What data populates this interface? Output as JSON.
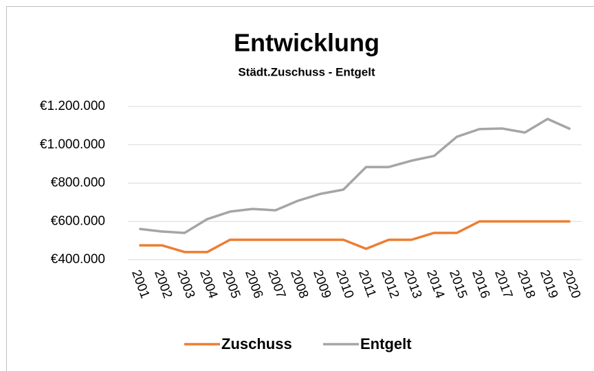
{
  "chart_data": {
    "type": "line",
    "title": "Entwicklung",
    "subtitle": "Städt.Zuschuss - Entgelt",
    "categories": [
      "2001",
      "2002",
      "2003",
      "2004",
      "2005",
      "2006",
      "2007",
      "2008",
      "2009",
      "2010",
      "2011",
      "2012",
      "2013",
      "2014",
      "2015",
      "2016",
      "2017",
      "2018",
      "2019",
      "2020"
    ],
    "series": [
      {
        "name": "Zuschuss",
        "color": "#ed7d31",
        "values": [
          475000,
          475000,
          440000,
          440000,
          504000,
          504000,
          504000,
          504000,
          504000,
          504000,
          457000,
          504000,
          504000,
          540000,
          540000,
          600000,
          600000,
          600000,
          600000,
          600000
        ]
      },
      {
        "name": "Entgelt",
        "color": "#a5a5a5",
        "values": [
          561000,
          547000,
          540000,
          612000,
          651000,
          665000,
          658000,
          708000,
          744000,
          766000,
          884000,
          884000,
          917000,
          942000,
          1042000,
          1082000,
          1085000,
          1064000,
          1135000,
          1082000
        ]
      }
    ],
    "ylim": [
      400000,
      1200000
    ],
    "yticks": [
      {
        "value": 400000,
        "label": "€400.000"
      },
      {
        "value": 600000,
        "label": "€600.000"
      },
      {
        "value": 800000,
        "label": "€800.000"
      },
      {
        "value": 1000000,
        "label": "€1.000.000"
      },
      {
        "value": 1200000,
        "label": "€1.200.000"
      }
    ],
    "grid": true,
    "legend": "bottom"
  }
}
